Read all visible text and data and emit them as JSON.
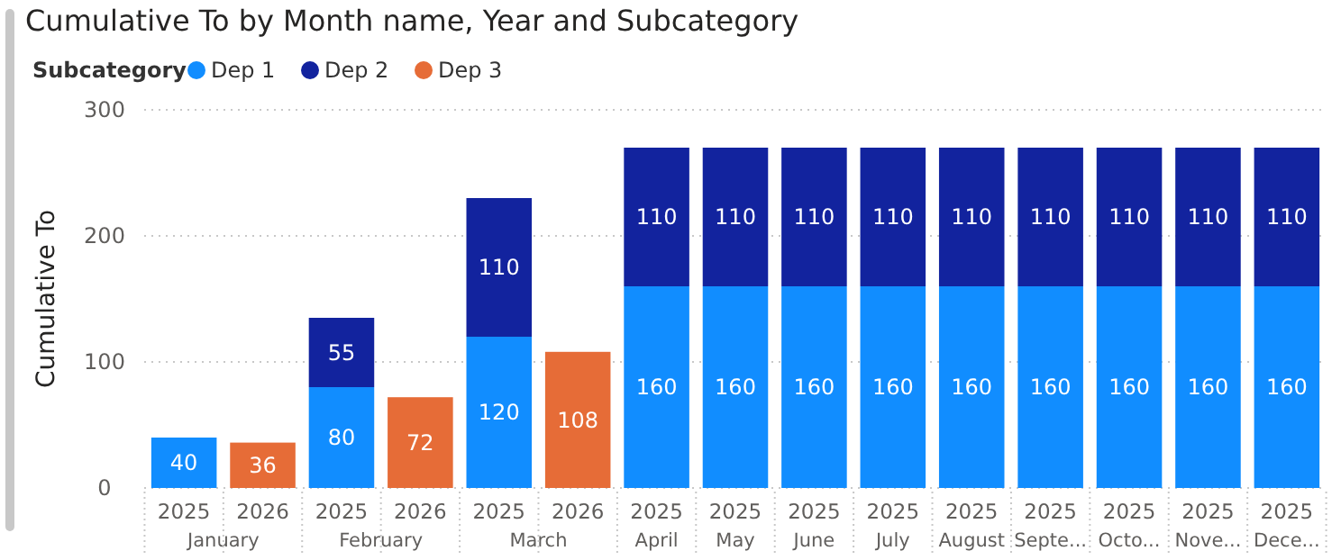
{
  "chart_data": {
    "type": "bar",
    "title": "Cumulative To by Month name, Year and Subcategory",
    "ylabel": "Cumulative To",
    "legend_title": "Subcategory",
    "categories": [
      "2025",
      "2026",
      "2025",
      "2026",
      "2025",
      "2026",
      "2025",
      "2025",
      "2025",
      "2025",
      "2025",
      "2025",
      "2025",
      "2025",
      "2025"
    ],
    "annotations": [
      "January",
      "February",
      "March",
      "April",
      "May",
      "June",
      "July",
      "August",
      "Septe...",
      "Octo...",
      "Nove...",
      "Dece..."
    ],
    "series": [
      {
        "name": "Dep 1",
        "color": "#118dff",
        "values": [
          40,
          null,
          80,
          null,
          120,
          null,
          160,
          160,
          160,
          160,
          160,
          160,
          160,
          160,
          160
        ]
      },
      {
        "name": "Dep 2",
        "color": "#12239e",
        "values": [
          null,
          null,
          55,
          null,
          110,
          null,
          110,
          110,
          110,
          110,
          110,
          110,
          110,
          110,
          110
        ]
      },
      {
        "name": "Dep 3",
        "color": "#e66c37",
        "values": [
          null,
          36,
          null,
          72,
          null,
          108,
          null,
          null,
          null,
          null,
          null,
          null,
          null,
          null,
          null
        ]
      }
    ],
    "stacked": true,
    "data_labels": true,
    "ylim": [
      0,
      300
    ],
    "yticks": [
      0,
      100,
      200,
      300
    ],
    "grid": "y",
    "legend": "top left"
  }
}
